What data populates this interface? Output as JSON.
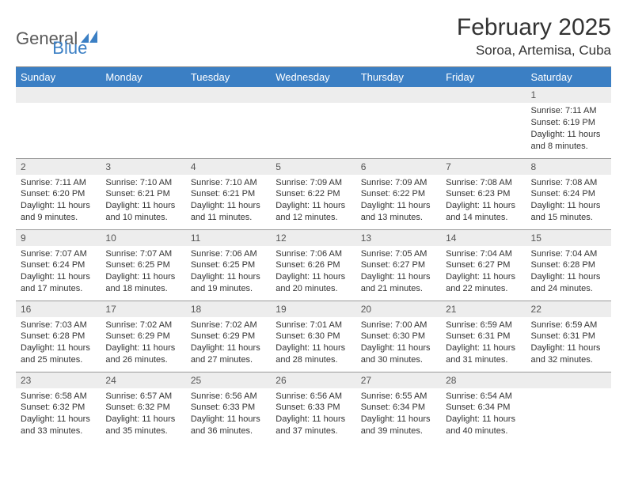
{
  "brand": {
    "text1": "General",
    "text2": "Blue"
  },
  "title": "February 2025",
  "location": "Soroa, Artemisa, Cuba",
  "colors": {
    "header_bg": "#3b7fc4",
    "header_text": "#ffffff",
    "daynum_bg": "#ededed",
    "border": "#999999",
    "page_bg": "#ffffff",
    "text": "#333333",
    "brand_gray": "#5a5a5a",
    "brand_blue": "#3b7fc4"
  },
  "typography": {
    "title_fontsize": 30,
    "location_fontsize": 17,
    "header_fontsize": 13,
    "body_fontsize": 11
  },
  "structure_type": "table",
  "columns": [
    "Sunday",
    "Monday",
    "Tuesday",
    "Wednesday",
    "Thursday",
    "Friday",
    "Saturday"
  ],
  "weeks": [
    [
      null,
      null,
      null,
      null,
      null,
      null,
      {
        "n": "1",
        "sunrise": "7:11 AM",
        "sunset": "6:19 PM",
        "daylight": "11 hours and 8 minutes."
      }
    ],
    [
      {
        "n": "2",
        "sunrise": "7:11 AM",
        "sunset": "6:20 PM",
        "daylight": "11 hours and 9 minutes."
      },
      {
        "n": "3",
        "sunrise": "7:10 AM",
        "sunset": "6:21 PM",
        "daylight": "11 hours and 10 minutes."
      },
      {
        "n": "4",
        "sunrise": "7:10 AM",
        "sunset": "6:21 PM",
        "daylight": "11 hours and 11 minutes."
      },
      {
        "n": "5",
        "sunrise": "7:09 AM",
        "sunset": "6:22 PM",
        "daylight": "11 hours and 12 minutes."
      },
      {
        "n": "6",
        "sunrise": "7:09 AM",
        "sunset": "6:22 PM",
        "daylight": "11 hours and 13 minutes."
      },
      {
        "n": "7",
        "sunrise": "7:08 AM",
        "sunset": "6:23 PM",
        "daylight": "11 hours and 14 minutes."
      },
      {
        "n": "8",
        "sunrise": "7:08 AM",
        "sunset": "6:24 PM",
        "daylight": "11 hours and 15 minutes."
      }
    ],
    [
      {
        "n": "9",
        "sunrise": "7:07 AM",
        "sunset": "6:24 PM",
        "daylight": "11 hours and 17 minutes."
      },
      {
        "n": "10",
        "sunrise": "7:07 AM",
        "sunset": "6:25 PM",
        "daylight": "11 hours and 18 minutes."
      },
      {
        "n": "11",
        "sunrise": "7:06 AM",
        "sunset": "6:25 PM",
        "daylight": "11 hours and 19 minutes."
      },
      {
        "n": "12",
        "sunrise": "7:06 AM",
        "sunset": "6:26 PM",
        "daylight": "11 hours and 20 minutes."
      },
      {
        "n": "13",
        "sunrise": "7:05 AM",
        "sunset": "6:27 PM",
        "daylight": "11 hours and 21 minutes."
      },
      {
        "n": "14",
        "sunrise": "7:04 AM",
        "sunset": "6:27 PM",
        "daylight": "11 hours and 22 minutes."
      },
      {
        "n": "15",
        "sunrise": "7:04 AM",
        "sunset": "6:28 PM",
        "daylight": "11 hours and 24 minutes."
      }
    ],
    [
      {
        "n": "16",
        "sunrise": "7:03 AM",
        "sunset": "6:28 PM",
        "daylight": "11 hours and 25 minutes."
      },
      {
        "n": "17",
        "sunrise": "7:02 AM",
        "sunset": "6:29 PM",
        "daylight": "11 hours and 26 minutes."
      },
      {
        "n": "18",
        "sunrise": "7:02 AM",
        "sunset": "6:29 PM",
        "daylight": "11 hours and 27 minutes."
      },
      {
        "n": "19",
        "sunrise": "7:01 AM",
        "sunset": "6:30 PM",
        "daylight": "11 hours and 28 minutes."
      },
      {
        "n": "20",
        "sunrise": "7:00 AM",
        "sunset": "6:30 PM",
        "daylight": "11 hours and 30 minutes."
      },
      {
        "n": "21",
        "sunrise": "6:59 AM",
        "sunset": "6:31 PM",
        "daylight": "11 hours and 31 minutes."
      },
      {
        "n": "22",
        "sunrise": "6:59 AM",
        "sunset": "6:31 PM",
        "daylight": "11 hours and 32 minutes."
      }
    ],
    [
      {
        "n": "23",
        "sunrise": "6:58 AM",
        "sunset": "6:32 PM",
        "daylight": "11 hours and 33 minutes."
      },
      {
        "n": "24",
        "sunrise": "6:57 AM",
        "sunset": "6:32 PM",
        "daylight": "11 hours and 35 minutes."
      },
      {
        "n": "25",
        "sunrise": "6:56 AM",
        "sunset": "6:33 PM",
        "daylight": "11 hours and 36 minutes."
      },
      {
        "n": "26",
        "sunrise": "6:56 AM",
        "sunset": "6:33 PM",
        "daylight": "11 hours and 37 minutes."
      },
      {
        "n": "27",
        "sunrise": "6:55 AM",
        "sunset": "6:34 PM",
        "daylight": "11 hours and 39 minutes."
      },
      {
        "n": "28",
        "sunrise": "6:54 AM",
        "sunset": "6:34 PM",
        "daylight": "11 hours and 40 minutes."
      },
      null
    ]
  ],
  "labels": {
    "sunrise": "Sunrise:",
    "sunset": "Sunset:",
    "daylight": "Daylight:"
  }
}
